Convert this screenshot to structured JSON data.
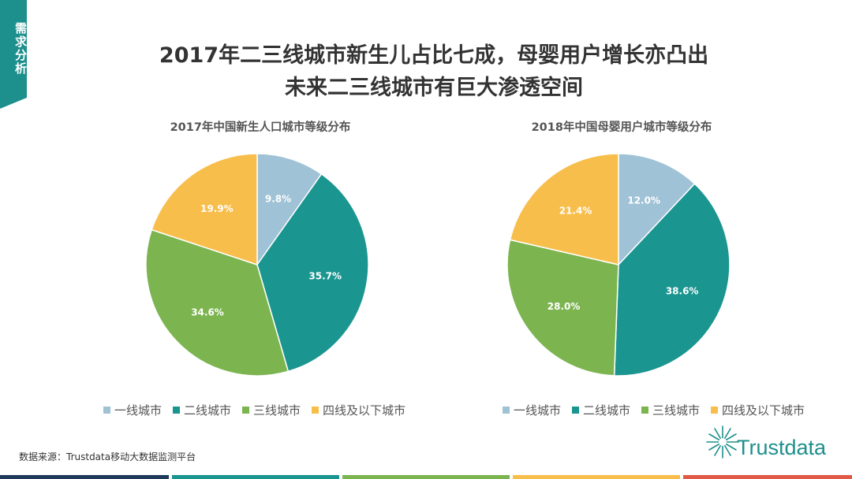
{
  "side_tab": {
    "label": "需求分析"
  },
  "header": {
    "title_line1": "2017年二三线城市新生儿占比七成，母婴用户增长亦凸出",
    "title_line2": "未来二三线城市有巨大渗透空间"
  },
  "chart_data": [
    {
      "type": "pie",
      "title": "2017年中国新生人口城市等级分布",
      "categories": [
        "一线城市",
        "二线城市",
        "三线城市",
        "四线及以下城市"
      ],
      "values": [
        9.8,
        35.7,
        34.6,
        19.9
      ],
      "value_labels": [
        "9.8%",
        "35.7%",
        "34.6%",
        "19.9%"
      ],
      "colors": [
        "#9fc2d6",
        "#1b9590",
        "#7cb550",
        "#f8be4b"
      ],
      "legend": "bottom"
    },
    {
      "type": "pie",
      "title": "2018年中国母婴用户城市等级分布",
      "categories": [
        "一线城市",
        "二线城市",
        "三线城市",
        "四线及以下城市"
      ],
      "values": [
        12.0,
        38.6,
        28.0,
        21.4
      ],
      "value_labels": [
        "12.0%",
        "38.6%",
        "28.0%",
        "21.4%"
      ],
      "colors": [
        "#9fc2d6",
        "#1b9590",
        "#7cb550",
        "#f8be4b"
      ],
      "legend": "bottom"
    }
  ],
  "footer": {
    "source": "数据来源：Trustdata移动大数据监测平台",
    "logo_text": "Trustdata"
  },
  "bottom_bar_colors": [
    "#1f3a5a",
    "#1b9590",
    "#7cb550",
    "#f8be4b",
    "#e05a47"
  ]
}
